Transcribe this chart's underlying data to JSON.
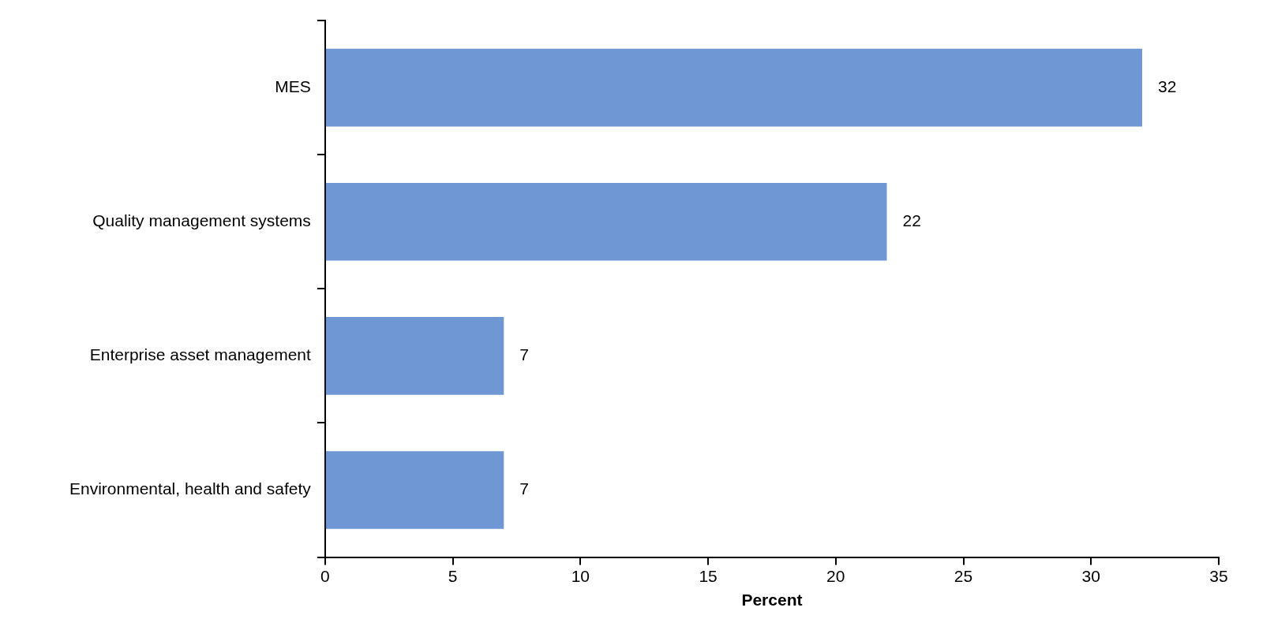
{
  "chart_data": {
    "type": "bar",
    "orientation": "horizontal",
    "xlabel": "Percent",
    "categories": [
      "MES",
      "Quality management systems",
      "Enterprise asset management",
      "Environmental, health and safety"
    ],
    "values": [
      32,
      22,
      7,
      7
    ],
    "color": "#6f97d4",
    "xlim": [
      0,
      35
    ],
    "xticks": [
      0,
      5,
      10,
      15,
      20,
      25,
      30,
      35
    ],
    "data_labels": true,
    "grid": false,
    "legend": false
  }
}
